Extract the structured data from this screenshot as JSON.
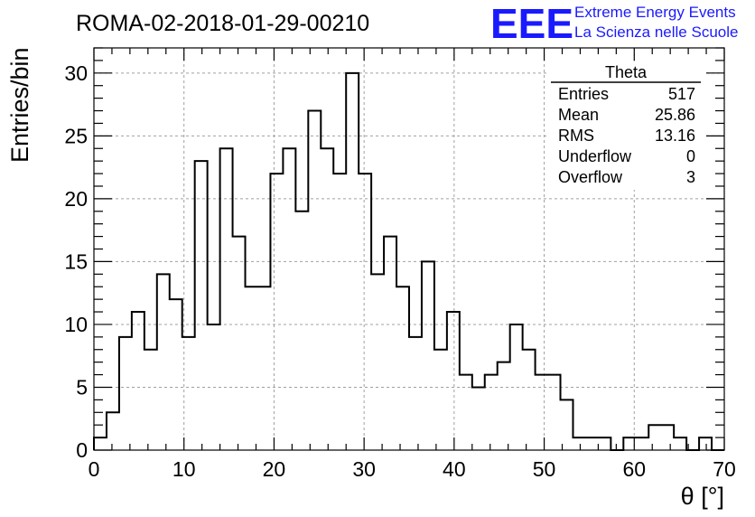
{
  "chart_data": {
    "type": "histogram",
    "title": "ROMA-02-2018-01-29-00210",
    "xlabel": "θ [°]",
    "ylabel": "Entries/bin",
    "xlim": [
      0,
      70
    ],
    "ylim": [
      0,
      32
    ],
    "bin_width": 1.4,
    "bin_start": 0,
    "values": [
      1,
      3,
      9,
      11,
      8,
      14,
      12,
      9,
      23,
      10,
      24,
      17,
      13,
      13,
      22,
      24,
      19,
      27,
      24,
      22,
      30,
      22,
      14,
      17,
      13,
      9,
      15,
      8,
      11,
      6,
      5,
      6,
      7,
      10,
      8,
      6,
      6,
      4,
      1,
      1,
      1,
      0,
      1,
      1,
      2,
      2,
      1,
      0,
      1,
      0
    ],
    "xticks": [
      "0",
      "10",
      "20",
      "30",
      "40",
      "50",
      "60",
      "70"
    ],
    "yticks": [
      "0",
      "5",
      "10",
      "15",
      "20",
      "25",
      "30"
    ],
    "grid": true,
    "line_color": "#000000"
  },
  "stats": {
    "title": "Theta",
    "rows": [
      {
        "label": "Entries",
        "value": "517"
      },
      {
        "label": "Mean",
        "value": "25.86"
      },
      {
        "label": "RMS",
        "value": "13.16"
      },
      {
        "label": "Underflow",
        "value": "0"
      },
      {
        "label": "Overflow",
        "value": "3"
      }
    ]
  },
  "logo": {
    "mark": "EEE",
    "line1": "Extreme Energy Events",
    "line2": "La Scienza nelle Scuole",
    "color": "#1a1aff"
  }
}
